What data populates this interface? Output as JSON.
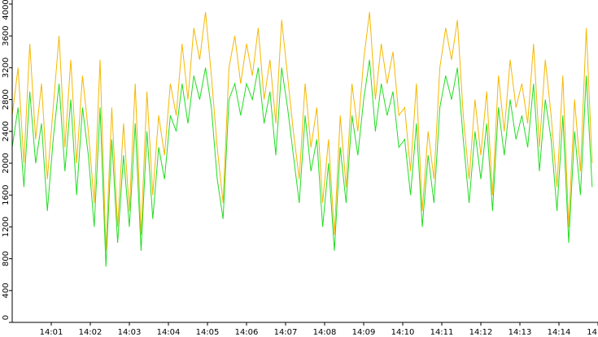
{
  "chart_data": {
    "type": "line",
    "x": [
      0,
      0.15,
      0.3,
      0.45,
      0.6,
      0.75,
      0.9,
      1.05,
      1.2,
      1.35,
      1.5,
      1.65,
      1.8,
      1.95,
      2.1,
      2.25,
      2.4,
      2.55,
      2.7,
      2.85,
      3,
      3.15,
      3.3,
      3.45,
      3.6,
      3.75,
      3.9,
      4.05,
      4.2,
      4.35,
      4.5,
      4.65,
      4.8,
      4.95,
      5.1,
      5.25,
      5.4,
      5.55,
      5.7,
      5.85,
      6,
      6.15,
      6.3,
      6.45,
      6.6,
      6.75,
      6.9,
      7.05,
      7.2,
      7.35,
      7.5,
      7.65,
      7.8,
      7.95,
      8.1,
      8.25,
      8.4,
      8.55,
      8.7,
      8.85,
      9,
      9.15,
      9.3,
      9.45,
      9.6,
      9.75,
      9.9,
      10.05,
      10.2,
      10.35,
      10.5,
      10.65,
      10.8,
      10.95,
      11.1,
      11.25,
      11.4,
      11.55,
      11.7,
      11.85,
      12,
      12.15,
      12.3,
      12.45,
      12.6,
      12.75,
      12.9,
      13.05,
      13.2,
      13.35,
      13.5,
      13.65,
      13.8,
      13.95,
      14.1,
      14.25,
      14.4,
      14.55,
      14.7,
      14.85
    ],
    "series": [
      {
        "color": "#f5b800",
        "values": [
          2600,
          3200,
          2000,
          3500,
          2300,
          3000,
          1800,
          2700,
          3600,
          2200,
          3300,
          2000,
          3100,
          2400,
          1500,
          3300,
          900,
          2700,
          1200,
          2500,
          1400,
          3000,
          1100,
          2900,
          1600,
          2600,
          2100,
          3000,
          2600,
          3500,
          2800,
          3700,
          3300,
          3900,
          3100,
          2200,
          1500,
          3200,
          3600,
          3000,
          3500,
          3100,
          3700,
          2800,
          3300,
          2500,
          3800,
          3100,
          2400,
          1800,
          3000,
          2200,
          2700,
          1500,
          2300,
          1100,
          2600,
          1700,
          3000,
          2400,
          3300,
          3900,
          2800,
          3500,
          3000,
          3400,
          2600,
          2700,
          1900,
          3000,
          1400,
          2400,
          1800,
          3200,
          3700,
          3300,
          3800,
          2600,
          1800,
          2800,
          2100,
          2900,
          1600,
          3100,
          2400,
          3300,
          2700,
          3000,
          2500,
          3500,
          2200,
          3300,
          2600,
          1700,
          3100,
          1200,
          2800,
          1900,
          3700,
          2000
        ]
      },
      {
        "color": "#22dd22",
        "values": [
          2200,
          2700,
          1700,
          2900,
          2000,
          2500,
          1400,
          2300,
          3000,
          1900,
          2800,
          1600,
          2700,
          2100,
          1200,
          2700,
          700,
          2300,
          1000,
          2100,
          1200,
          2500,
          900,
          2400,
          1300,
          2200,
          1800,
          2600,
          2400,
          3000,
          2500,
          3100,
          2800,
          3200,
          2700,
          1800,
          1300,
          2800,
          3000,
          2600,
          3000,
          2800,
          3200,
          2500,
          2900,
          2100,
          3200,
          2700,
          2100,
          1500,
          2600,
          1900,
          2300,
          1200,
          2000,
          900,
          2200,
          1500,
          2600,
          2100,
          2800,
          3300,
          2400,
          3000,
          2600,
          2900,
          2200,
          2300,
          1600,
          2500,
          1200,
          2100,
          1500,
          2700,
          3100,
          2800,
          3200,
          2300,
          1500,
          2400,
          1800,
          2500,
          1400,
          2700,
          2100,
          2800,
          2300,
          2600,
          2200,
          3000,
          1900,
          2800,
          2300,
          1400,
          2600,
          1000,
          2400,
          1600,
          3100,
          1700
        ]
      }
    ],
    "xlim": [
      0,
      15
    ],
    "xticks": [
      {
        "value": 1,
        "label": "14:01"
      },
      {
        "value": 2,
        "label": "14:02"
      },
      {
        "value": 3,
        "label": "14:03"
      },
      {
        "value": 4,
        "label": "14:04"
      },
      {
        "value": 5,
        "label": "14:05"
      },
      {
        "value": 6,
        "label": "14:06"
      },
      {
        "value": 7,
        "label": "14:07"
      },
      {
        "value": 8,
        "label": "14:08"
      },
      {
        "value": 9,
        "label": "14:09"
      },
      {
        "value": 10,
        "label": "14:10"
      },
      {
        "value": 11,
        "label": "14:11"
      },
      {
        "value": 12,
        "label": "14:12"
      },
      {
        "value": 13,
        "label": "14:13"
      },
      {
        "value": 14,
        "label": "14:14"
      },
      {
        "value": 15,
        "label": "14"
      }
    ],
    "ylim": [
      0,
      4000
    ],
    "yticks": [
      0,
      400,
      800,
      1200,
      1600,
      2000,
      2400,
      2800,
      3200,
      3600,
      4000
    ]
  }
}
